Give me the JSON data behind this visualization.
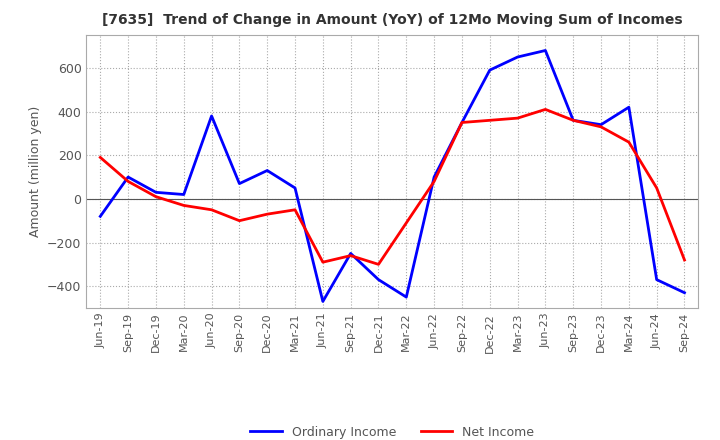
{
  "title": "[7635]  Trend of Change in Amount (YoY) of 12Mo Moving Sum of Incomes",
  "ylabel": "Amount (million yen)",
  "x_labels": [
    "Jun-19",
    "Sep-19",
    "Dec-19",
    "Mar-20",
    "Jun-20",
    "Sep-20",
    "Dec-20",
    "Mar-21",
    "Jun-21",
    "Sep-21",
    "Dec-21",
    "Mar-22",
    "Jun-22",
    "Sep-22",
    "Dec-22",
    "Mar-23",
    "Jun-23",
    "Sep-23",
    "Dec-23",
    "Mar-24",
    "Jun-24",
    "Sep-24"
  ],
  "ordinary_income": [
    -80,
    100,
    30,
    20,
    380,
    70,
    130,
    50,
    -470,
    -250,
    -370,
    -450,
    100,
    350,
    590,
    650,
    680,
    360,
    340,
    420,
    -370,
    -430
  ],
  "net_income": [
    190,
    80,
    10,
    -30,
    -50,
    -100,
    -70,
    -50,
    -290,
    -260,
    -300,
    -110,
    80,
    350,
    360,
    370,
    410,
    360,
    330,
    260,
    50,
    -280
  ],
  "ylim": [
    -500,
    750
  ],
  "yticks": [
    -400,
    -200,
    0,
    200,
    400,
    600
  ],
  "ordinary_color": "#0000ff",
  "net_color": "#ff0000",
  "background_color": "#ffffff",
  "grid_color": "#aaaaaa",
  "zero_line_color": "#555555",
  "title_color": "#333333",
  "tick_color": "#555555"
}
